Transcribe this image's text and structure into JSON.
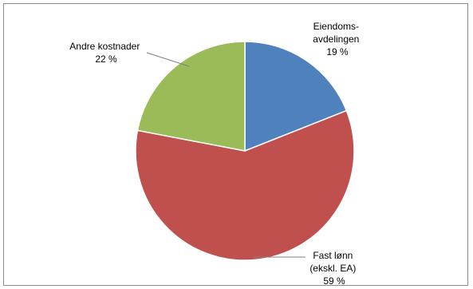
{
  "chart_data": {
    "type": "pie",
    "title": "",
    "slices": [
      {
        "label_lines": [
          "Eiendoms-",
          "avdelingen"
        ],
        "value_label": "19 %",
        "value": 19,
        "color": "#4f81bd"
      },
      {
        "label_lines": [
          "Fast lønn",
          "(ekskl. EA)"
        ],
        "value_label": "59 %",
        "value": 59,
        "color": "#c0504d"
      },
      {
        "label_lines": [
          "Andre kostnader"
        ],
        "value_label": "22 %",
        "value": 22,
        "color": "#9bbb59"
      }
    ],
    "start_angle_deg": 0,
    "direction": "clockwise",
    "legend": "none",
    "data_labels": "outside-with-leader-lines"
  }
}
